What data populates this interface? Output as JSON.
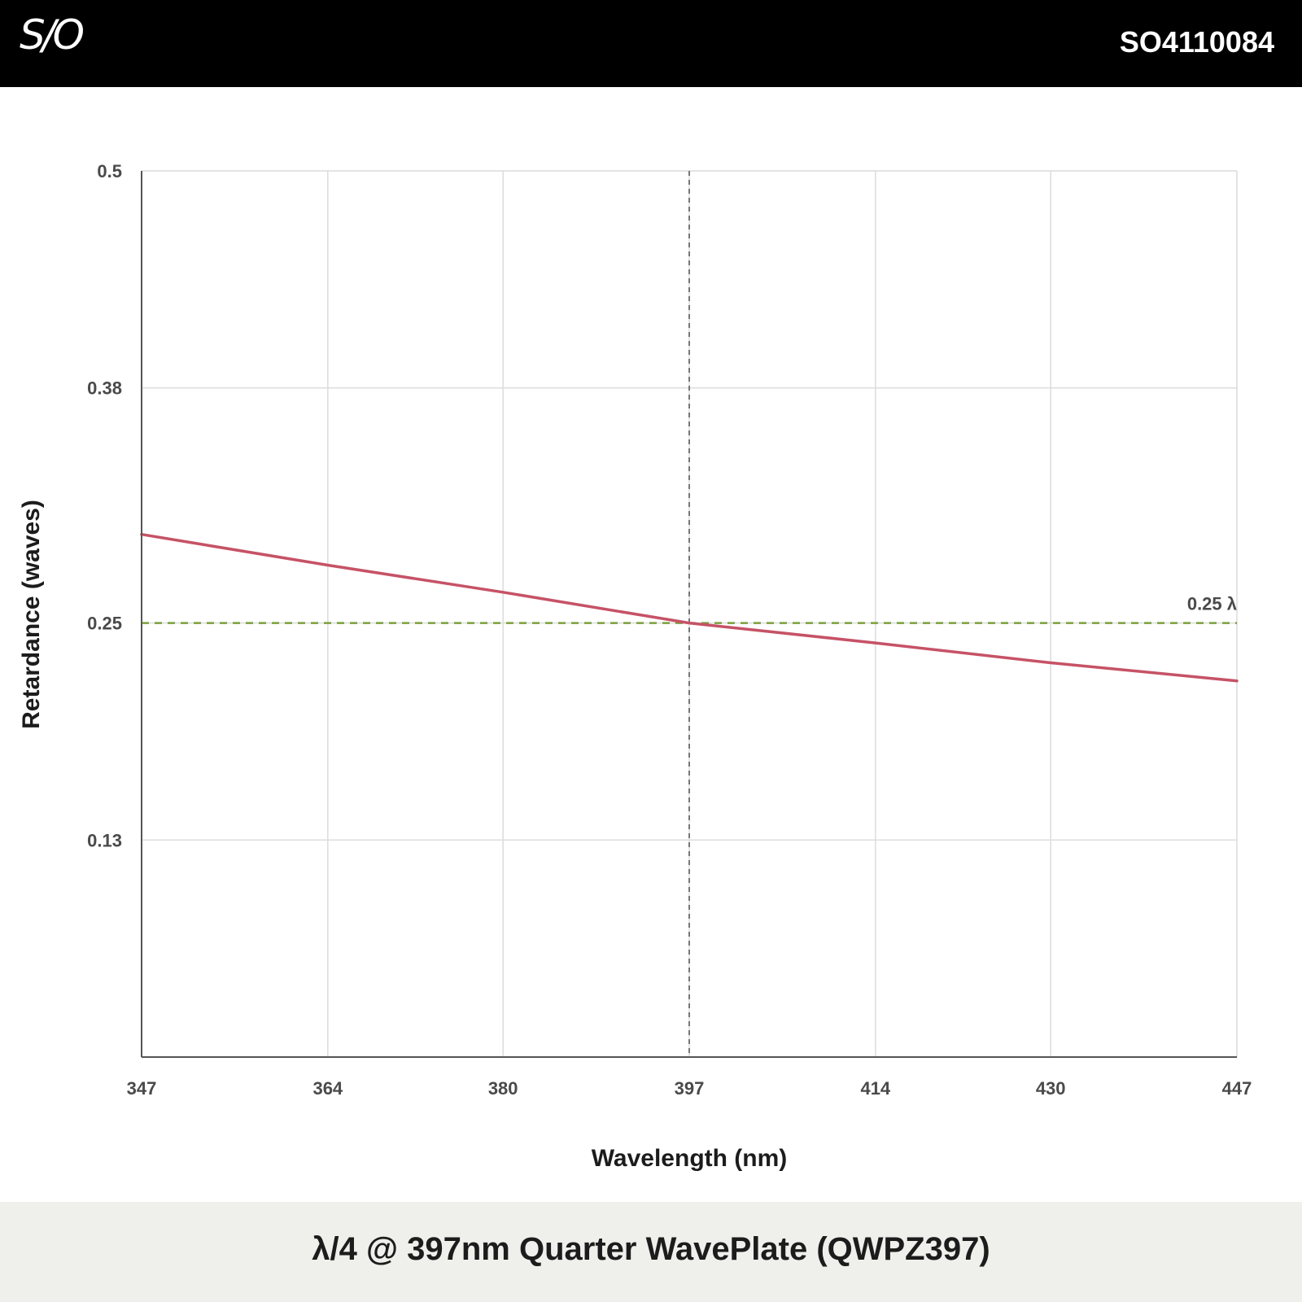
{
  "header": {
    "logo": "S/O",
    "part_number": "SO4110084"
  },
  "footer": {
    "title": "λ/4 @ 397nm Quarter WavePlate (QWPZ397)"
  },
  "chart_data": {
    "type": "line",
    "xlabel": "Wavelength (nm)",
    "ylabel": "Retardance (waves)",
    "xlim": [
      347,
      447
    ],
    "ylim": [
      0.01,
      0.5
    ],
    "x_ticks": [
      347,
      364,
      380,
      397,
      414,
      430,
      447
    ],
    "y_ticks": [
      0.5,
      0.38,
      0.25,
      0.13
    ],
    "grid": true,
    "series": [
      {
        "color": "#c65266",
        "x": [
          347,
          364,
          380,
          397,
          414,
          430,
          447
        ],
        "y": [
          0.299,
          0.282,
          0.267,
          0.25,
          0.239,
          0.228,
          0.218
        ]
      }
    ],
    "reference_lines": [
      {
        "orientation": "horizontal",
        "value": 0.25,
        "label": "0.25 λ",
        "color": "#7ba03c",
        "style": "dashed"
      },
      {
        "orientation": "vertical",
        "value": 397,
        "color": "#777777",
        "style": "dashed"
      }
    ]
  }
}
